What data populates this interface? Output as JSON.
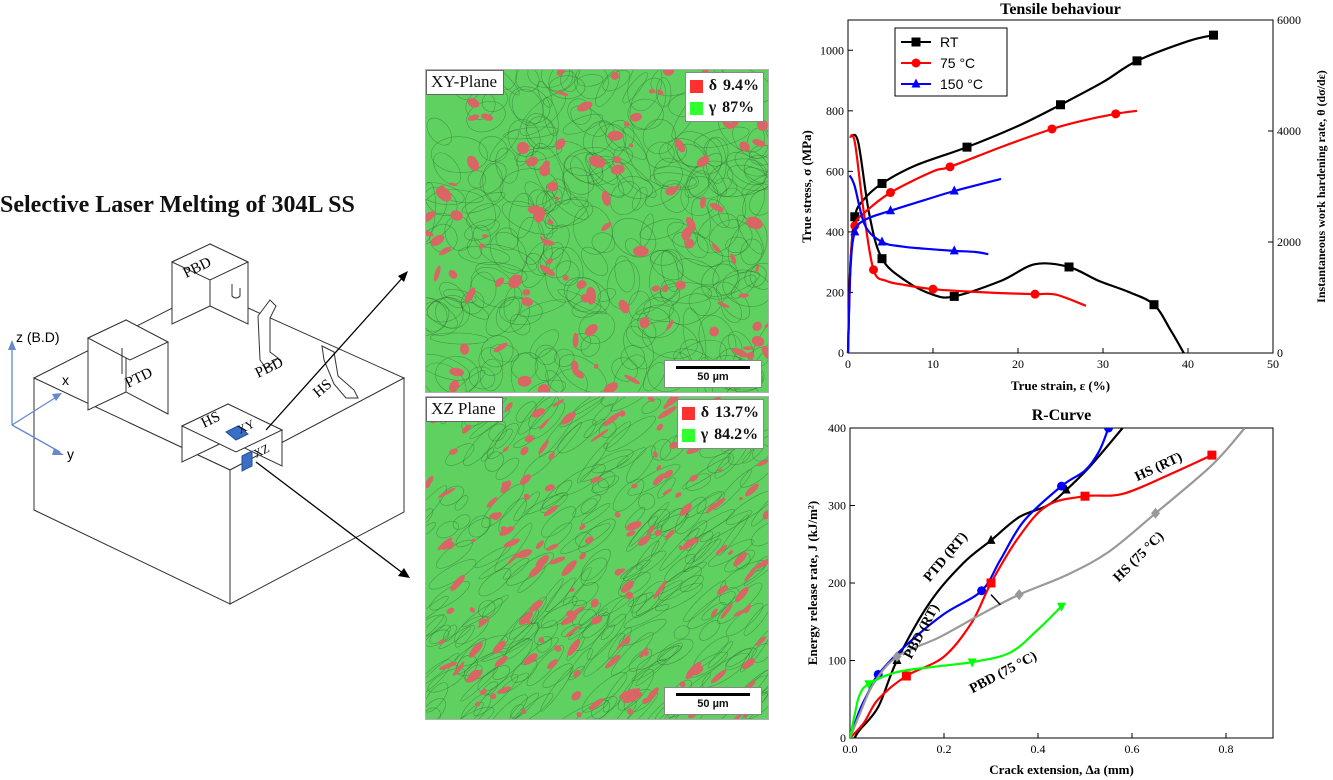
{
  "main_title": "Selective Laser Melting of 304L SS",
  "schematic": {
    "axis_z": "z (B.D)",
    "axis_x": "x",
    "axis_y": "y",
    "labels": {
      "ptd": "PTD",
      "pbd_block": "PBD",
      "pbd_rod": "PBD",
      "hs_rod": "HS",
      "hs_block": "HS",
      "xy": "XY",
      "xz": "XZ"
    },
    "marker_color": "#3a6fc4"
  },
  "micrographs": {
    "xy": {
      "plane": "XY-Plane",
      "delta_symbol": "δ",
      "delta_value": "9.4%",
      "gamma_symbol": "γ",
      "gamma_value": "87%",
      "scale": "50 µm"
    },
    "xz": {
      "plane": "XZ Plane",
      "delta_symbol": "δ",
      "delta_value": "13.7%",
      "gamma_symbol": "γ",
      "gamma_value": "84.2%",
      "scale": "50 µm"
    },
    "colors": {
      "austenite": "#5fd160",
      "delta_ferrite": "#d96565"
    }
  },
  "chart_data": [
    {
      "type": "line",
      "title": "Tensile behaviour",
      "xlabel": "True strain, ε (%)",
      "ylabel": "True stress, σ (MPa)",
      "ylabel_right": "Instantaneous work hardening rate, θ (dσ/dε)",
      "xlim": [
        0,
        50
      ],
      "ylim": [
        0,
        1100
      ],
      "ylim_right": [
        0,
        6000
      ],
      "x_ticks": [
        "0",
        "10",
        "20",
        "30",
        "40",
        "50"
      ],
      "y_ticks": [
        "0",
        "200",
        "400",
        "600",
        "800",
        "1000"
      ],
      "y_ticks_right": [
        "0",
        "2000",
        "4000",
        "6000"
      ],
      "legend_position": "top-left",
      "series": [
        {
          "name": "RT",
          "color": "#000000",
          "marker": "square",
          "stress": [
            [
              0,
              0
            ],
            [
              0.3,
              300
            ],
            [
              0.8,
              450
            ],
            [
              1.8,
              505
            ],
            [
              4,
              560
            ],
            [
              8,
              620
            ],
            [
              14,
              680
            ],
            [
              20,
              750
            ],
            [
              25,
              820
            ],
            [
              30,
              895
            ],
            [
              34,
              965
            ],
            [
              40,
              1030
            ],
            [
              43,
              1050
            ]
          ],
          "hardening": [
            [
              0.3,
              3900
            ],
            [
              1.2,
              3800
            ],
            [
              2.5,
              2500
            ],
            [
              4,
              1700
            ],
            [
              6.8,
              1300
            ],
            [
              10,
              1050
            ],
            [
              12.5,
              1020
            ],
            [
              18,
              1300
            ],
            [
              22,
              1600
            ],
            [
              26,
              1550
            ],
            [
              29.5,
              1300
            ],
            [
              33,
              1100
            ],
            [
              36,
              870
            ],
            [
              38,
              400
            ],
            [
              39.5,
              0
            ]
          ]
        },
        {
          "name": "75 °C",
          "color": "#ff0000",
          "marker": "circle",
          "stress": [
            [
              0,
              0
            ],
            [
              0.3,
              300
            ],
            [
              0.8,
              420
            ],
            [
              1.8,
              460
            ],
            [
              5,
              530
            ],
            [
              10,
              600
            ],
            [
              12,
              615
            ],
            [
              18,
              680
            ],
            [
              24,
              740
            ],
            [
              28,
              770
            ],
            [
              31.5,
              790
            ],
            [
              34,
              800
            ]
          ],
          "hardening": [
            [
              0.2,
              3900
            ],
            [
              0.8,
              3800
            ],
            [
              1.8,
              2600
            ],
            [
              3,
              1500
            ],
            [
              4.5,
              1300
            ],
            [
              6.5,
              1230
            ],
            [
              10,
              1150
            ],
            [
              15,
              1100
            ],
            [
              18,
              1080
            ],
            [
              22,
              1060
            ],
            [
              24.5,
              1050
            ],
            [
              28,
              850
            ]
          ]
        },
        {
          "name": "150 °C",
          "color": "#0000ff",
          "marker": "triangle",
          "stress": [
            [
              0,
              0
            ],
            [
              0.3,
              280
            ],
            [
              0.8,
              400
            ],
            [
              2,
              440
            ],
            [
              5,
              470
            ],
            [
              9,
              505
            ],
            [
              12.5,
              535
            ],
            [
              18,
              575
            ]
          ],
          "hardening": [
            [
              0.2,
              3200
            ],
            [
              0.8,
              3000
            ],
            [
              2,
              2300
            ],
            [
              4,
              2000
            ],
            [
              6.3,
              1920
            ],
            [
              9,
              1880
            ],
            [
              12.5,
              1840
            ],
            [
              15,
              1820
            ],
            [
              16.5,
              1780
            ]
          ]
        }
      ]
    },
    {
      "type": "line",
      "title": "R-Curve",
      "xlabel": "Crack extension, Δa (mm)",
      "ylabel": "Energy release rate, J (kJ/m²)",
      "xlim": [
        0,
        0.9
      ],
      "ylim": [
        0,
        400
      ],
      "x_ticks": [
        "0.0",
        "0.2",
        "0.4",
        "0.6",
        "0.8"
      ],
      "y_ticks": [
        "0",
        "100",
        "200",
        "300",
        "400"
      ],
      "series": [
        {
          "name": "PBD (RT)",
          "color": "#000000",
          "marker": "triangle-up",
          "points": [
            [
              0.01,
              0
            ],
            [
              0.02,
              10
            ],
            [
              0.06,
              40
            ],
            [
              0.1,
              100
            ],
            [
              0.17,
              175
            ],
            [
              0.24,
              225
            ],
            [
              0.3,
              255
            ],
            [
              0.36,
              285
            ],
            [
              0.42,
              300
            ],
            [
              0.46,
              320
            ],
            [
              0.51,
              350
            ],
            [
              0.58,
              400
            ]
          ]
        },
        {
          "name": "PTD (RT)",
          "color": "#0000ff",
          "marker": "circle",
          "points": [
            [
              0.0,
              0
            ],
            [
              0.02,
              35
            ],
            [
              0.04,
              60
            ],
            [
              0.06,
              82
            ],
            [
              0.12,
              120
            ],
            [
              0.2,
              160
            ],
            [
              0.28,
              190
            ],
            [
              0.32,
              230
            ],
            [
              0.37,
              280
            ],
            [
              0.45,
              325
            ],
            [
              0.5,
              345
            ],
            [
              0.53,
              370
            ],
            [
              0.55,
              400
            ]
          ]
        },
        {
          "name": "HS (RT)",
          "color": "#ff0000",
          "marker": "square",
          "points": [
            [
              0.0,
              0
            ],
            [
              0.03,
              20
            ],
            [
              0.06,
              50
            ],
            [
              0.12,
              80
            ],
            [
              0.2,
              105
            ],
            [
              0.26,
              150
            ],
            [
              0.3,
              200
            ],
            [
              0.36,
              260
            ],
            [
              0.42,
              300
            ],
            [
              0.5,
              312
            ],
            [
              0.58,
              315
            ],
            [
              0.68,
              340
            ],
            [
              0.77,
              365
            ]
          ]
        },
        {
          "name": "HS (75 °C)",
          "color": "#999999",
          "marker": "diamond",
          "points": [
            [
              0.0,
              0
            ],
            [
              0.02,
              30
            ],
            [
              0.05,
              70
            ],
            [
              0.1,
              105
            ],
            [
              0.19,
              130
            ],
            [
              0.28,
              160
            ],
            [
              0.36,
              185
            ],
            [
              0.46,
              210
            ],
            [
              0.55,
              240
            ],
            [
              0.65,
              290
            ],
            [
              0.77,
              352
            ],
            [
              0.84,
              400
            ]
          ]
        },
        {
          "name": "PBD (75 °C)",
          "color": "#00ff00",
          "marker": "triangle-down",
          "points": [
            [
              0.0,
              0
            ],
            [
              0.01,
              30
            ],
            [
              0.02,
              55
            ],
            [
              0.04,
              70
            ],
            [
              0.1,
              85
            ],
            [
              0.18,
              92
            ],
            [
              0.26,
              98
            ],
            [
              0.34,
              110
            ],
            [
              0.4,
              140
            ],
            [
              0.45,
              170
            ]
          ]
        }
      ]
    }
  ]
}
